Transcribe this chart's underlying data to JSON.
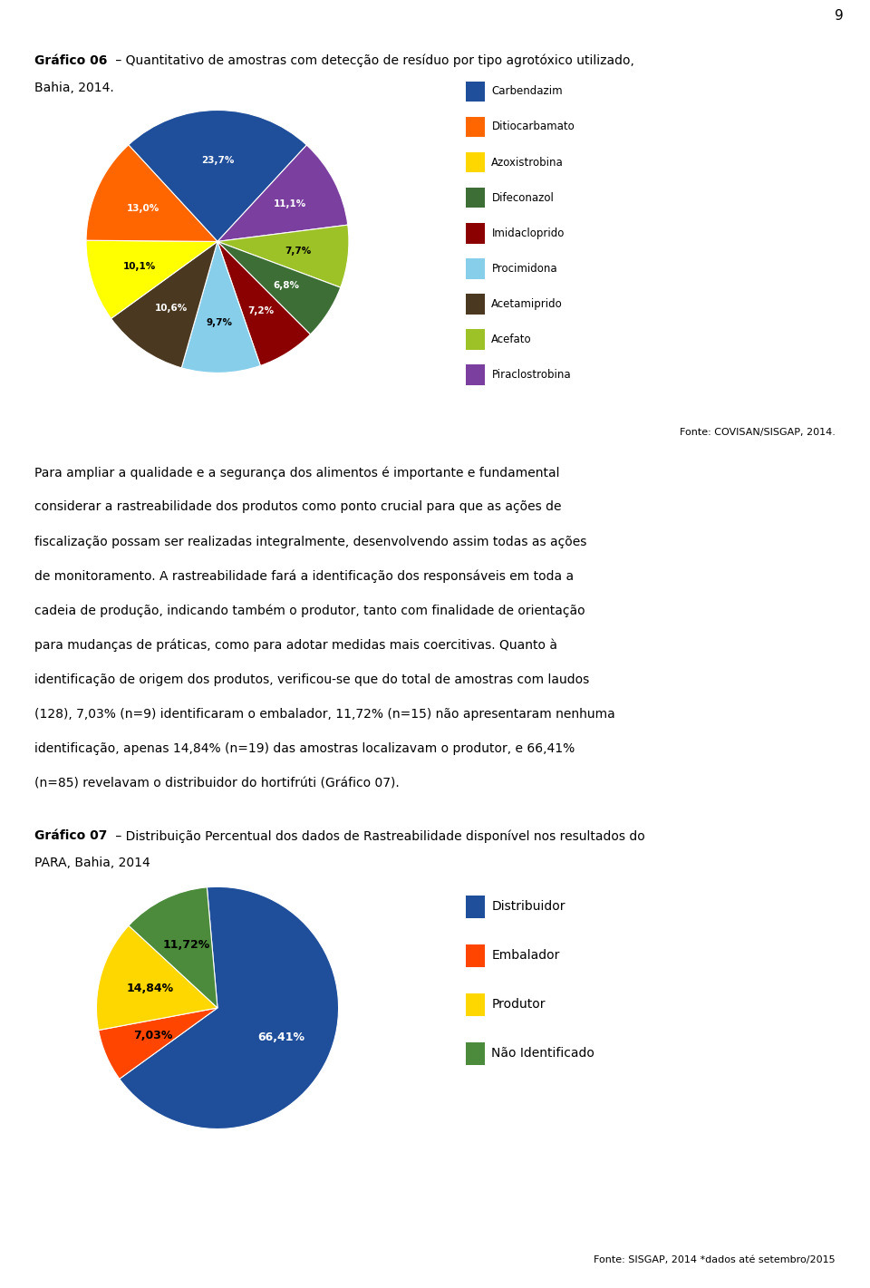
{
  "page_number": "9",
  "title1_line1_bold": "Gráfico 06",
  "title1_line1_rest": " – Quantitativo de amostras com detecção de resíduo por tipo agrotóxico utilizado,",
  "title1_line2": "Bahia, 2014.",
  "pie1_values": [
    23.7,
    11.1,
    7.7,
    6.8,
    7.2,
    9.7,
    10.6,
    10.1,
    13.0
  ],
  "pie1_labels": [
    "23,7%",
    "11,1%",
    "7,7%",
    "6,8%",
    "7,2%",
    "9,7%",
    "10,6%",
    "10,1%",
    "13,0%"
  ],
  "pie1_colors": [
    "#1F4E9B",
    "#7B3FA0",
    "#9DC228",
    "#3D6E35",
    "#8B0000",
    "#87CEEB",
    "#4B3820",
    "#FFFF00",
    "#FF6600"
  ],
  "pie1_label_colors": [
    "white",
    "white",
    "black",
    "white",
    "white",
    "black",
    "white",
    "black",
    "white"
  ],
  "pie1_legend": [
    "Carbendazim",
    "Ditiocarbamato",
    "Azoxistrobina",
    "Difeconazol",
    "Imidacloprido",
    "Procimidona",
    "Acetamiprido",
    "Acefato",
    "Piraclostrobina"
  ],
  "pie1_legend_colors": [
    "#1F4E9B",
    "#FF6600",
    "#FFD700",
    "#3D6E35",
    "#8B0000",
    "#87CEEB",
    "#4B3820",
    "#9DC228",
    "#7B3FA0"
  ],
  "pie1_startangle": 132.66,
  "fonte1": "Fonte: COVISAN/SISGAP, 2014.",
  "para_lines": [
    "Para ampliar a qualidade e a segurança dos alimentos é importante e fundamental",
    "considerar a rastreabilidade dos produtos como ponto crucial para que as ações de",
    "fiscalização possam ser realizadas integralmente, desenvolvendo assim todas as ações",
    "de monitoramento. A rastreabilidade fará a identificação dos responsáveis em toda a",
    "cadeia de produção, indicando também o produtor, tanto com finalidade de orientação",
    "para mudanças de práticas, como para adotar medidas mais coercitivas. Quanto à",
    "identificação de origem dos produtos, verificou-se que do total de amostras com laudos",
    "(128), 7,03% (n=9) identificaram o embalador, 11,72% (n=15) não apresentaram nenhuma",
    "identificação, apenas 14,84% (n=19) das amostras localizavam o produtor, e 66,41%",
    "(n=85) revelavam o distribuidor do hortifrúti (Gráfico 07)."
  ],
  "title2_line1_bold": "Gráfico 07",
  "title2_line1_rest": " – Distribuição Percentual dos dados de Rastreabilidade disponível nos resultados do",
  "title2_line2": "PARA, Bahia, 2014",
  "pie2_values": [
    66.41,
    7.03,
    14.84,
    11.72
  ],
  "pie2_labels": [
    "66,41%",
    "7,03%",
    "14,84%",
    "11,72%"
  ],
  "pie2_colors": [
    "#1F4E9B",
    "#FF4500",
    "#FFD700",
    "#4B8B3B"
  ],
  "pie2_label_colors": [
    "white",
    "black",
    "black",
    "black"
  ],
  "pie2_legend": [
    "Distribuidor",
    "Embalador",
    "Produtor",
    "Não Identificado"
  ],
  "pie2_legend_colors": [
    "#1F4E9B",
    "#FF4500",
    "#FFD700",
    "#4B8B3B"
  ],
  "pie2_startangle": 95,
  "fonte2": "Fonte: SISGAP, 2014 *dados até setembro/2015",
  "bg_color": "#FFFFFF",
  "text_color": "#000000"
}
